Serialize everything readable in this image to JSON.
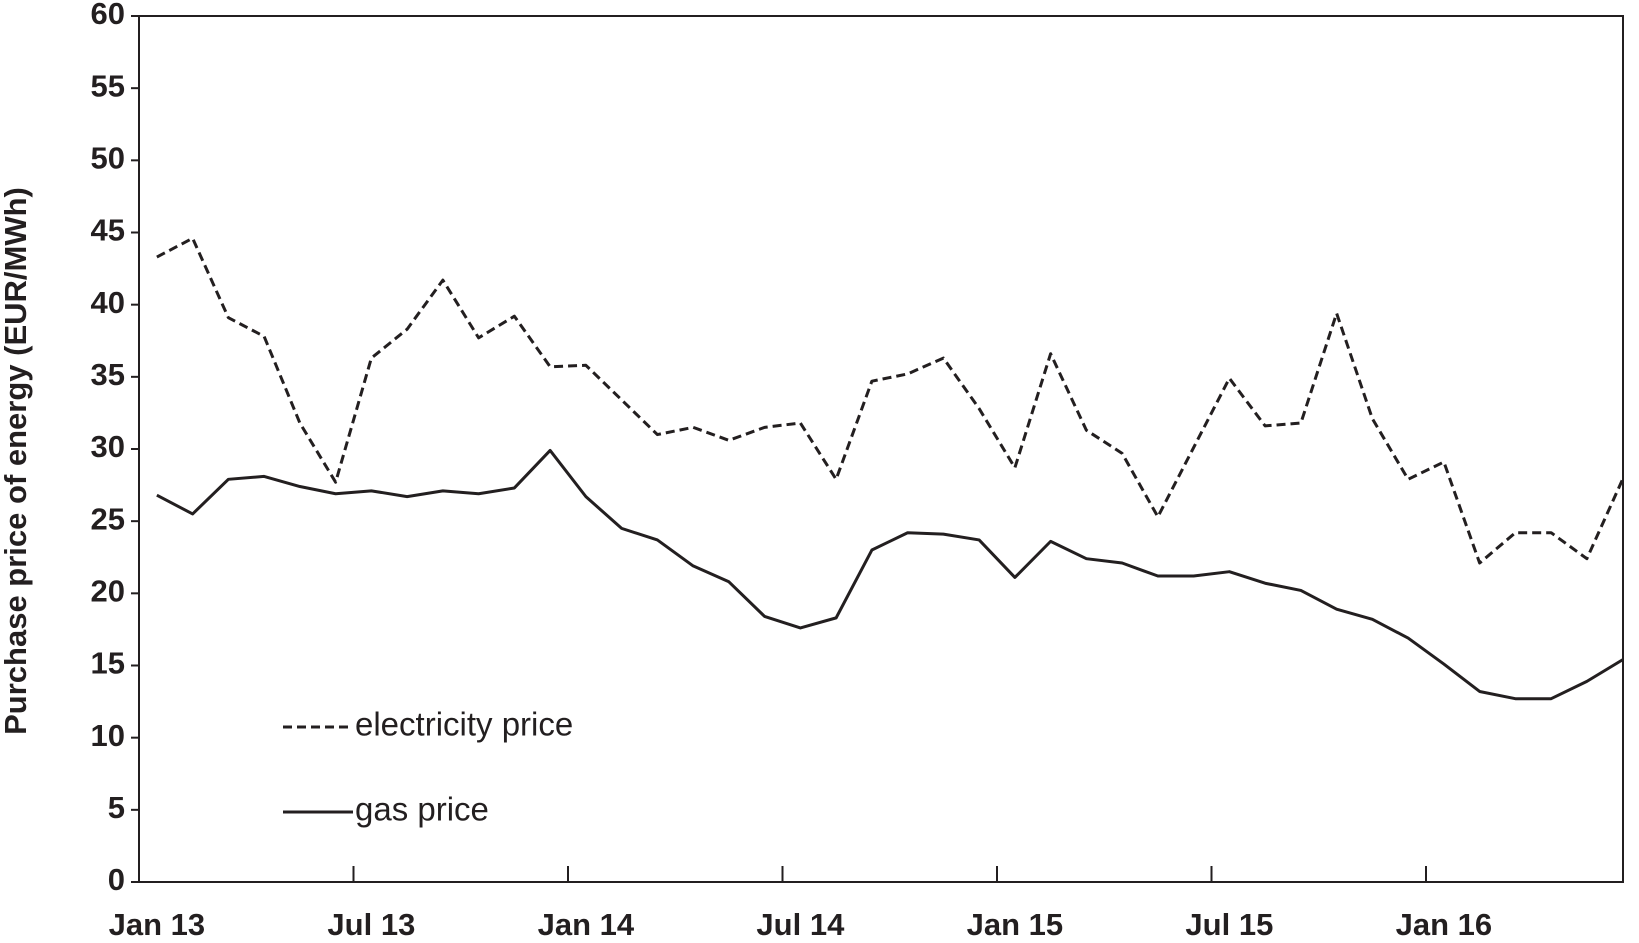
{
  "chart_data": {
    "type": "line",
    "y_label": "Purchase price of energy (EUR/MWh)",
    "categories": [
      "Jan 13",
      null,
      null,
      null,
      null,
      null,
      "Jul 13",
      null,
      null,
      null,
      null,
      null,
      "Jan 14",
      null,
      null,
      null,
      null,
      null,
      "Jul 14",
      null,
      null,
      null,
      null,
      null,
      "Jan 15",
      null,
      null,
      null,
      null,
      null,
      "Jul 15",
      null,
      null,
      null,
      null,
      null,
      "Jan 16",
      null,
      null,
      null,
      null,
      null
    ],
    "series": [
      {
        "name": "electricity price",
        "color": "#231f20",
        "dash": "dashed",
        "values": [
          43.3,
          44.6,
          39.1,
          37.8,
          31.8,
          27.7,
          36.3,
          38.3,
          41.7,
          37.7,
          39.2,
          35.7,
          35.8,
          33.4,
          31.0,
          31.5,
          30.6,
          31.5,
          31.8,
          27.9,
          34.7,
          35.2,
          36.3,
          32.8,
          28.7,
          36.6,
          31.3,
          29.7,
          25.3,
          30.1,
          34.9,
          31.6,
          31.8,
          39.4,
          32.1,
          27.9,
          29.1,
          22.1,
          24.2,
          24.2,
          22.4,
          27.9
        ]
      },
      {
        "name": "gas price",
        "color": "#231f20",
        "dash": "solid",
        "values": [
          26.8,
          25.5,
          27.9,
          28.1,
          27.4,
          26.9,
          27.1,
          26.7,
          27.1,
          26.9,
          27.3,
          29.9,
          26.7,
          24.5,
          23.7,
          21.9,
          20.8,
          18.4,
          17.6,
          18.3,
          23.0,
          24.2,
          24.1,
          23.7,
          21.1,
          23.6,
          22.4,
          22.1,
          21.2,
          21.2,
          21.5,
          20.7,
          20.2,
          18.9,
          18.2,
          16.9,
          15.1,
          13.2,
          12.7,
          12.7,
          13.9,
          15.4
        ]
      }
    ],
    "ylim": [
      0,
      60
    ],
    "yticks": [
      0,
      5,
      10,
      15,
      20,
      25,
      30,
      35,
      40,
      45,
      50,
      55,
      60
    ],
    "grid": false,
    "legend": "lower left"
  }
}
